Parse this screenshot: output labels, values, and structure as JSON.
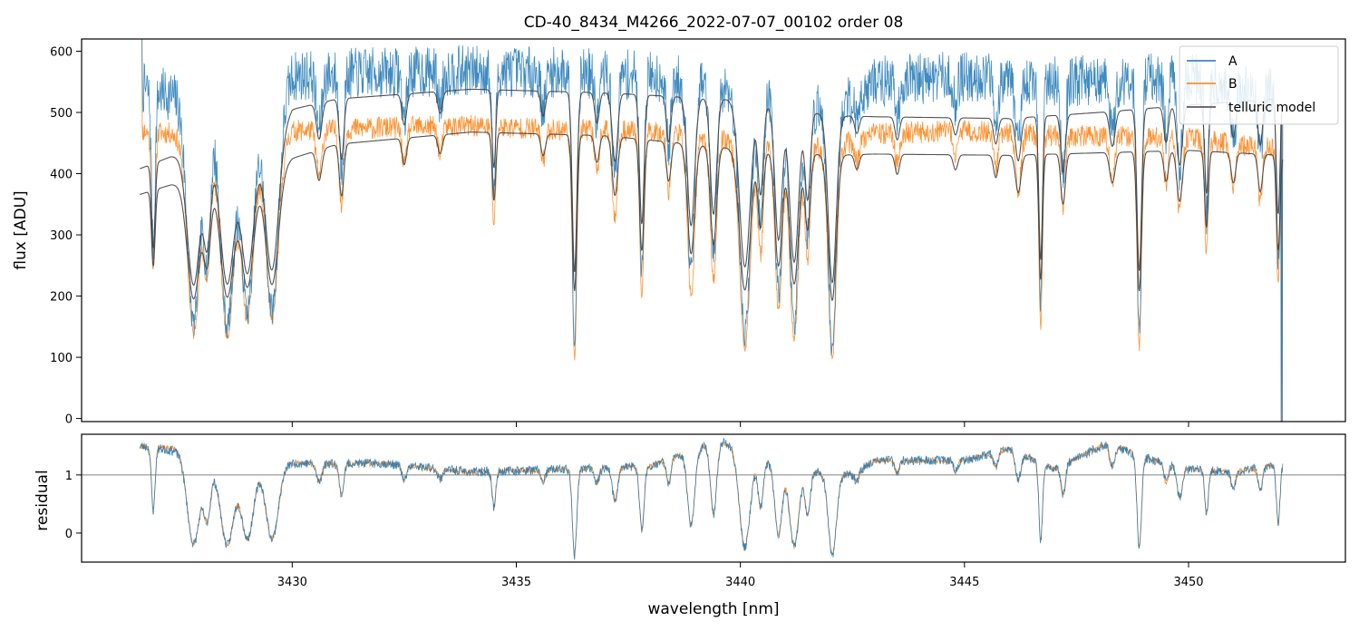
{
  "chart_data": [
    {
      "type": "line",
      "title": "CD-40_8434_M4266_2022-07-07_00102  order 08",
      "xlabel": "",
      "ylabel": "flux [ADU]",
      "xlim": [
        3425.3,
        3453.5
      ],
      "ylim": [
        -5,
        620
      ],
      "yticks": [
        0,
        100,
        200,
        300,
        400,
        500,
        600
      ],
      "ytick_labels": [
        "0",
        "100",
        "200",
        "300",
        "400",
        "500",
        "600"
      ],
      "xticks": [
        3430,
        3435,
        3440,
        3445,
        3450
      ],
      "legend": {
        "position": "top-right",
        "entries": [
          {
            "label": "A",
            "color": "#1f77b4"
          },
          {
            "label": "B",
            "color": "#ff7f0e"
          },
          {
            "label": "telluric model",
            "color": "#404040"
          }
        ]
      },
      "series": [
        {
          "name": "A",
          "color": "#1f77b4",
          "x_range": [
            3426.6,
            3452.1
          ],
          "continuum_keypoints": [
            [
              3426.6,
              540
            ],
            [
              3427.5,
              525
            ],
            [
              3428.0,
              515
            ],
            [
              3429.5,
              500
            ],
            [
              3430.0,
              560
            ],
            [
              3432,
              565
            ],
            [
              3434,
              568
            ],
            [
              3436,
              565
            ],
            [
              3438,
              560
            ],
            [
              3440,
              540
            ],
            [
              3442,
              500
            ],
            [
              3443,
              550
            ],
            [
              3445,
              560
            ],
            [
              3447,
              550
            ],
            [
              3449,
              555
            ],
            [
              3450,
              560
            ],
            [
              3451,
              540
            ],
            [
              3452.1,
              530
            ]
          ],
          "noise": 42
        },
        {
          "name": "B",
          "color": "#ff7f0e",
          "x_range": [
            3426.6,
            3452.1
          ],
          "continuum_keypoints": [
            [
              3426.6,
              470
            ],
            [
              3427.5,
              465
            ],
            [
              3429.5,
              455
            ],
            [
              3430.0,
              470
            ],
            [
              3432,
              475
            ],
            [
              3434,
              478
            ],
            [
              3436,
              472
            ],
            [
              3438,
              470
            ],
            [
              3440,
              455
            ],
            [
              3442,
              440
            ],
            [
              3443,
              465
            ],
            [
              3445,
              470
            ],
            [
              3447,
              462
            ],
            [
              3449,
              462
            ],
            [
              3450,
              458
            ],
            [
              3451,
              448
            ],
            [
              3452.1,
              440
            ]
          ],
          "noise": 18
        },
        {
          "name": "telluric model upper",
          "color": "#404040",
          "continuum_keypoints": [
            [
              3426.6,
              408
            ],
            [
              3427.3,
              428
            ],
            [
              3429.5,
              440
            ],
            [
              3430.0,
              505
            ],
            [
              3431,
              522
            ],
            [
              3434,
              538
            ],
            [
              3437,
              532
            ],
            [
              3440,
              520
            ],
            [
              3442,
              495
            ],
            [
              3443,
              493
            ],
            [
              3446,
              490
            ],
            [
              3448,
              500
            ],
            [
              3450,
              512
            ],
            [
              3452.1,
              523
            ]
          ]
        },
        {
          "name": "telluric model lower",
          "color": "#404040",
          "continuum_keypoints": [
            [
              3426.6,
              366
            ],
            [
              3427.3,
              382
            ],
            [
              3429.5,
              400
            ],
            [
              3430.0,
              425
            ],
            [
              3431,
              448
            ],
            [
              3434,
              468
            ],
            [
              3437,
              462
            ],
            [
              3440,
              440
            ],
            [
              3442,
              430
            ],
            [
              3443,
              432
            ],
            [
              3446,
              430
            ],
            [
              3448,
              434
            ],
            [
              3450,
              438
            ],
            [
              3452.1,
              430
            ]
          ]
        }
      ],
      "absorption_lines": [
        {
          "x": 3426.9,
          "depth": 0.35,
          "width": 0.04
        },
        {
          "x": 3427.8,
          "depth": 0.52,
          "width": 0.14
        },
        {
          "x": 3428.1,
          "depth": 0.35,
          "width": 0.08
        },
        {
          "x": 3428.55,
          "depth": 0.52,
          "width": 0.15
        },
        {
          "x": 3429.0,
          "depth": 0.48,
          "width": 0.14
        },
        {
          "x": 3429.55,
          "depth": 0.48,
          "width": 0.14
        },
        {
          "x": 3430.6,
          "depth": 0.12,
          "width": 0.06
        },
        {
          "x": 3431.1,
          "depth": 0.2,
          "width": 0.05
        },
        {
          "x": 3432.5,
          "depth": 0.1,
          "width": 0.05
        },
        {
          "x": 3433.3,
          "depth": 0.07,
          "width": 0.05
        },
        {
          "x": 3434.5,
          "depth": 0.25,
          "width": 0.04
        },
        {
          "x": 3435.6,
          "depth": 0.08,
          "width": 0.05
        },
        {
          "x": 3436.3,
          "depth": 0.58,
          "width": 0.05
        },
        {
          "x": 3436.8,
          "depth": 0.1,
          "width": 0.05
        },
        {
          "x": 3437.2,
          "depth": 0.22,
          "width": 0.06
        },
        {
          "x": 3437.8,
          "depth": 0.42,
          "width": 0.05
        },
        {
          "x": 3438.4,
          "depth": 0.15,
          "width": 0.05
        },
        {
          "x": 3438.9,
          "depth": 0.42,
          "width": 0.08
        },
        {
          "x": 3439.4,
          "depth": 0.38,
          "width": 0.07
        },
        {
          "x": 3440.1,
          "depth": 0.55,
          "width": 0.12
        },
        {
          "x": 3440.45,
          "depth": 0.3,
          "width": 0.06
        },
        {
          "x": 3440.85,
          "depth": 0.45,
          "width": 0.08
        },
        {
          "x": 3441.2,
          "depth": 0.52,
          "width": 0.1
        },
        {
          "x": 3441.5,
          "depth": 0.3,
          "width": 0.06
        },
        {
          "x": 3442.05,
          "depth": 0.58,
          "width": 0.09
        },
        {
          "x": 3442.6,
          "depth": 0.06,
          "width": 0.05
        },
        {
          "x": 3443.5,
          "depth": 0.08,
          "width": 0.05
        },
        {
          "x": 3444.8,
          "depth": 0.06,
          "width": 0.05
        },
        {
          "x": 3445.7,
          "depth": 0.09,
          "width": 0.05
        },
        {
          "x": 3446.2,
          "depth": 0.15,
          "width": 0.06
        },
        {
          "x": 3446.7,
          "depth": 0.5,
          "width": 0.04
        },
        {
          "x": 3447.2,
          "depth": 0.2,
          "width": 0.05
        },
        {
          "x": 3448.3,
          "depth": 0.12,
          "width": 0.06
        },
        {
          "x": 3448.9,
          "depth": 0.55,
          "width": 0.05
        },
        {
          "x": 3449.5,
          "depth": 0.12,
          "width": 0.05
        },
        {
          "x": 3449.8,
          "depth": 0.2,
          "width": 0.06
        },
        {
          "x": 3450.4,
          "depth": 0.3,
          "width": 0.04
        },
        {
          "x": 3451.0,
          "depth": 0.12,
          "width": 0.05
        },
        {
          "x": 3451.6,
          "depth": 0.15,
          "width": 0.05
        },
        {
          "x": 3452.0,
          "depth": 0.38,
          "width": 0.04
        }
      ]
    },
    {
      "type": "line",
      "title": "",
      "xlabel": "wavelength [nm]",
      "ylabel": "residual",
      "xlim": [
        3425.3,
        3453.5
      ],
      "ylim": [
        -0.5,
        1.7
      ],
      "yticks": [
        0,
        1
      ],
      "ytick_labels": [
        "0",
        "1"
      ],
      "xticks": [
        3430,
        3435,
        3440,
        3445,
        3450
      ],
      "xtick_labels": [
        "3430",
        "3435",
        "3440",
        "3445",
        "3450"
      ],
      "reference_line": 1,
      "series": [
        {
          "name": "A",
          "color": "#1f77b4",
          "baseline_keypoints": [
            [
              3426.6,
              1.5
            ],
            [
              3427.5,
              1.4
            ],
            [
              3428,
              1.2
            ],
            [
              3430,
              1.2
            ],
            [
              3432,
              1.2
            ],
            [
              3434,
              1.05
            ],
            [
              3436,
              1.1
            ],
            [
              3438,
              1.15
            ],
            [
              3439.5,
              1.6
            ],
            [
              3440,
              1.45
            ],
            [
              3441,
              1.1
            ],
            [
              3442.5,
              1.0
            ],
            [
              3443,
              1.25
            ],
            [
              3445,
              1.25
            ],
            [
              3446,
              1.45
            ],
            [
              3447,
              1.1
            ],
            [
              3448.2,
              1.55
            ],
            [
              3449,
              1.3
            ],
            [
              3450,
              1.1
            ],
            [
              3451,
              1.05
            ],
            [
              3452.1,
              1.2
            ]
          ],
          "noise": 0.08
        },
        {
          "name": "B",
          "color": "#ff7f0e",
          "baseline_keypoints": [
            [
              3426.6,
              1.5
            ],
            [
              3427.5,
              1.45
            ],
            [
              3428,
              1.2
            ],
            [
              3430,
              1.2
            ],
            [
              3432,
              1.2
            ],
            [
              3434,
              1.05
            ],
            [
              3436,
              1.1
            ],
            [
              3438,
              1.15
            ],
            [
              3439.5,
              1.6
            ],
            [
              3440,
              1.45
            ],
            [
              3441,
              1.1
            ],
            [
              3442.5,
              1.0
            ],
            [
              3443,
              1.25
            ],
            [
              3445,
              1.25
            ],
            [
              3446,
              1.45
            ],
            [
              3447,
              1.1
            ],
            [
              3448.2,
              1.55
            ],
            [
              3449,
              1.3
            ],
            [
              3450,
              1.1
            ],
            [
              3451,
              1.05
            ],
            [
              3452.1,
              1.2
            ]
          ],
          "noise": 0.05
        }
      ]
    }
  ]
}
